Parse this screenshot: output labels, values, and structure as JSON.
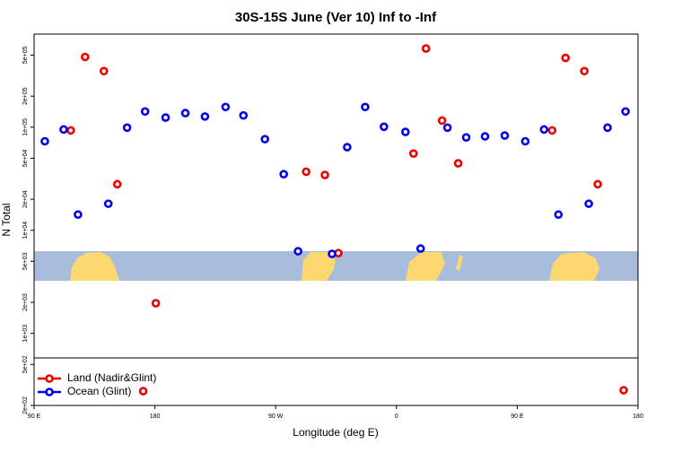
{
  "chart_data": {
    "type": "scatter",
    "title": "30S-15S June (Ver 10)   Inf to -Inf",
    "xlabel": "Longitude (deg E)",
    "ylabel": "N Total",
    "xlim": [
      90,
      540
    ],
    "ylim": [
      200,
      800000
    ],
    "ylog": true,
    "legend": "bottom-left",
    "xticks": [
      {
        "value": 90,
        "label": "90 E"
      },
      180,
      {
        "value": 270,
        "label": "90 W"
      },
      {
        "value": 360,
        "label": "0"
      },
      {
        "value": 450,
        "label": "90 E"
      },
      {
        "value": 540,
        "label": "180"
      }
    ],
    "yticks": [
      {
        "value": 200,
        "label": "2e+02"
      },
      {
        "value": 500,
        "label": "5e+02"
      },
      {
        "value": 1000,
        "label": "1e+03"
      },
      {
        "value": 2000,
        "label": "2e+03"
      },
      {
        "value": 5000,
        "label": "5e+03"
      },
      {
        "value": 10000,
        "label": "1e+04"
      },
      {
        "value": 20000,
        "label": "2e+04"
      },
      {
        "value": 50000,
        "label": "5e+04"
      },
      {
        "value": 100000,
        "label": "1e+05"
      },
      {
        "value": 200000,
        "label": "2e+05"
      },
      {
        "value": 500000,
        "label": "5e+05"
      }
    ],
    "series": [
      {
        "name": "Land (Nadir&Glint)",
        "color": "#ee0000",
        "x": [
          117.3,
          128,
          142,
          152,
          171.3,
          180.7,
          292.7,
          306.7,
          316.7,
          372.7,
          382,
          394,
          406,
          476,
          486,
          500,
          510,
          529.3
        ],
        "values": [
          93000,
          480000,
          350000,
          28000,
          275,
          1960,
          37000,
          34400,
          6000,
          55500,
          580000,
          116000,
          44600,
          93000,
          470000,
          350000,
          28000,
          281
        ]
      },
      {
        "name": "Ocean (Glint)",
        "color": "#0000ee",
        "x": [
          98,
          112,
          122.7,
          145.3,
          159.3,
          172.7,
          188,
          202.7,
          217.3,
          232.7,
          246,
          262,
          276,
          286.7,
          312,
          323.3,
          336.7,
          350.7,
          366.7,
          378,
          398,
          412,
          426,
          440.7,
          456,
          470,
          480.7,
          503.3,
          517.3,
          530.7
        ],
        "values": [
          73000,
          95000,
          14200,
          18100,
          99000,
          142000,
          124000,
          137000,
          127000,
          157000,
          130000,
          76500,
          35000,
          6260,
          5900,
          64000,
          157000,
          101000,
          90000,
          6650,
          99000,
          79600,
          81500,
          83000,
          73000,
          95000,
          14200,
          18100,
          99000,
          142000
        ]
      }
    ]
  }
}
